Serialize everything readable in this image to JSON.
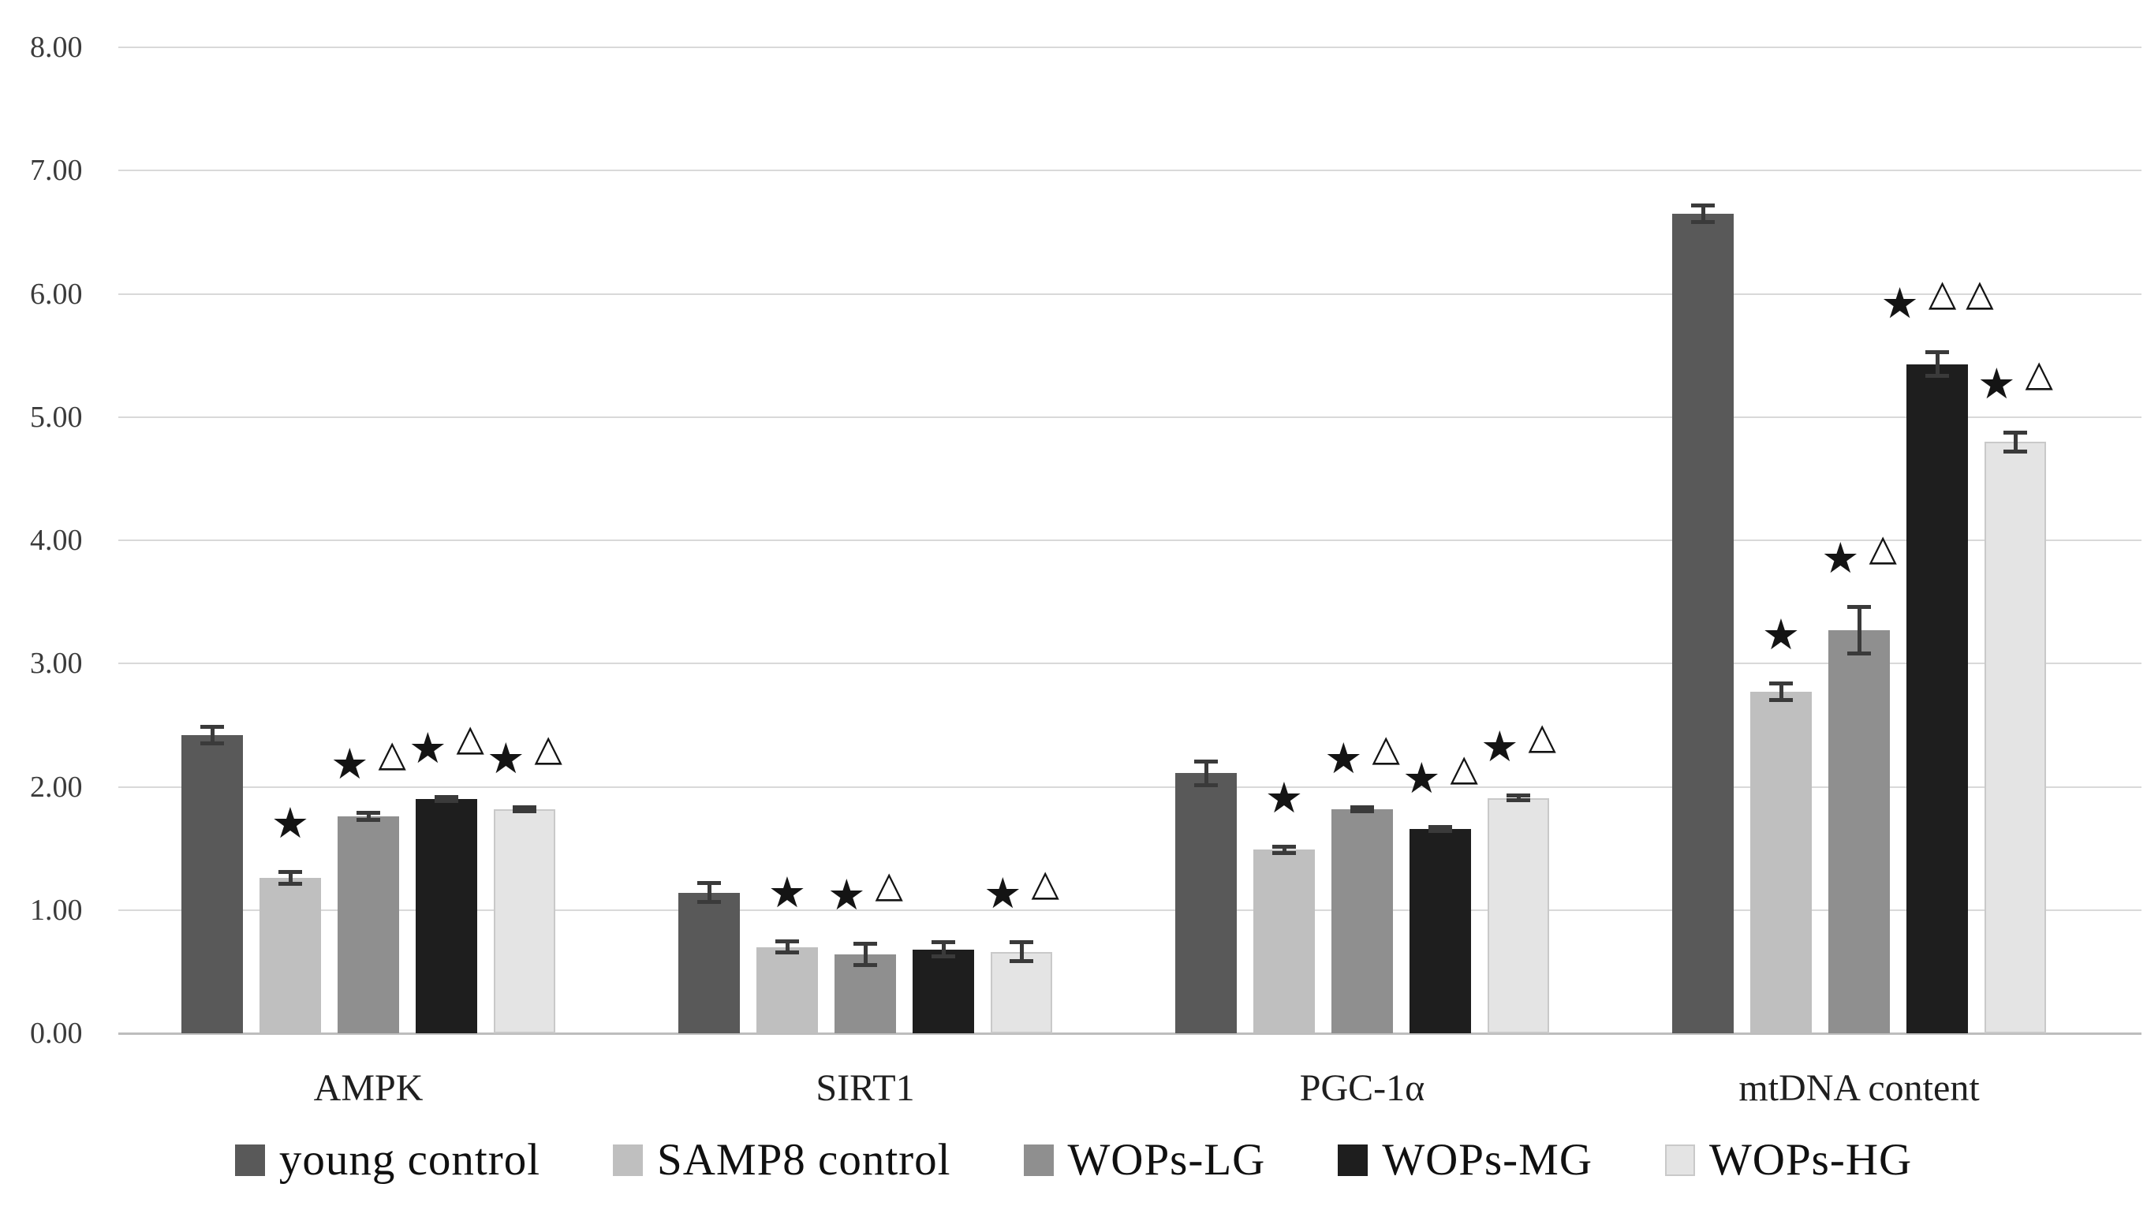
{
  "chart_data": {
    "type": "bar",
    "title": "",
    "xlabel": "",
    "ylabel": "",
    "ylim": [
      0,
      8
    ],
    "ytick_step": 1,
    "yticks": [
      "0.00",
      "1.00",
      "2.00",
      "3.00",
      "4.00",
      "5.00",
      "6.00",
      "7.00",
      "8.00"
    ],
    "grid": true,
    "legend_position": "bottom",
    "categories": [
      "AMPK",
      "SIRT1",
      "PGC-1α",
      "mtDNA content"
    ],
    "series": [
      {
        "name": "young control",
        "color": "#595959",
        "border_color": "",
        "values": [
          2.42,
          1.14,
          2.11,
          6.65
        ],
        "errors": [
          0.07,
          0.08,
          0.1,
          0.07
        ],
        "annotations": [
          [],
          [],
          [],
          []
        ]
      },
      {
        "name": "SAMP8 control",
        "color": "#bfbfbf",
        "border_color": "",
        "values": [
          1.26,
          0.7,
          1.49,
          2.77
        ],
        "errors": [
          0.05,
          0.05,
          0.03,
          0.07
        ],
        "annotations": [
          [
            "★"
          ],
          [
            "★"
          ],
          [
            "★"
          ],
          [
            "★"
          ]
        ]
      },
      {
        "name": "WOPs-LG",
        "color": "#8f8f8f",
        "border_color": "",
        "values": [
          1.76,
          0.64,
          1.82,
          3.27
        ],
        "errors": [
          0.03,
          0.09,
          0.02,
          0.19
        ],
        "annotations": [
          [
            "★",
            "△"
          ],
          [
            "★",
            "△"
          ],
          [
            "★",
            "△"
          ],
          [
            "★",
            "△"
          ]
        ]
      },
      {
        "name": "WOPs-MG",
        "color": "#1e1e1e",
        "border_color": "",
        "values": [
          1.9,
          0.68,
          1.66,
          5.43
        ],
        "errors": [
          0.02,
          0.06,
          0.02,
          0.1
        ],
        "annotations": [
          [
            "★",
            "△"
          ],
          [],
          [
            "★",
            "△"
          ],
          [
            "★",
            "△",
            "△"
          ]
        ]
      },
      {
        "name": "WOPs-HG",
        "color": "#e4e4e4",
        "border_color": "#c9c9c9",
        "values": [
          1.82,
          0.66,
          1.91,
          4.8
        ],
        "errors": [
          0.02,
          0.08,
          0.02,
          0.08
        ],
        "annotations": [
          [
            "★",
            "△"
          ],
          [
            "★",
            "△"
          ],
          [
            "★",
            "△"
          ],
          [
            "★",
            "△"
          ]
        ]
      }
    ],
    "significance_symbols": {
      "star": "★",
      "triangle": "△"
    }
  }
}
